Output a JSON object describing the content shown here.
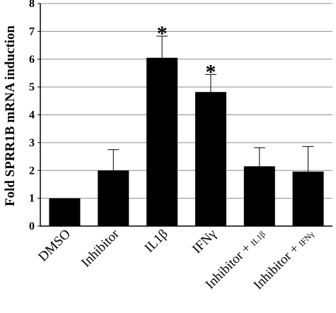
{
  "chart_data": {
    "type": "bar",
    "title": "",
    "xlabel": "",
    "ylabel": "Fold SPRR1B mRNA induction",
    "ylim": [
      0,
      8
    ],
    "yticks": [
      0,
      1,
      2,
      3,
      4,
      5,
      6,
      7,
      8
    ],
    "grid": true,
    "colors": {
      "bar": "#000000",
      "grid": "#8c8c8c",
      "axis": "#000000"
    },
    "categories": [
      {
        "main": "DMSO",
        "sub": ""
      },
      {
        "main": "Inhibitor",
        "sub": ""
      },
      {
        "main": "IL1β",
        "sub": ""
      },
      {
        "main": "IFNγ",
        "sub": ""
      },
      {
        "main": "Inhibitor + ",
        "sub": "IL1β"
      },
      {
        "main": "Inhibitor + ",
        "sub": "IFNγ"
      }
    ],
    "values": [
      1.0,
      2.0,
      6.05,
      4.82,
      2.15,
      1.96
    ],
    "error_upper": [
      0.0,
      0.75,
      0.78,
      0.63,
      0.67,
      0.9
    ],
    "significance": [
      "",
      "",
      "*",
      "*",
      "",
      ""
    ]
  }
}
